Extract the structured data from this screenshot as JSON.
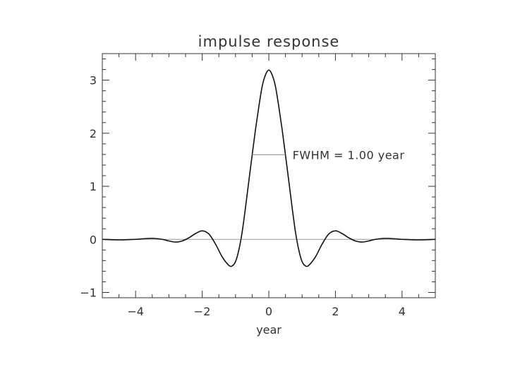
{
  "chart_data": {
    "type": "line",
    "title": "impulse response",
    "xlabel": "year",
    "ylabel": "",
    "xlim": [
      -5,
      5
    ],
    "ylim": [
      -1.1,
      3.5
    ],
    "xticks": [
      -4,
      -2,
      0,
      2,
      4
    ],
    "xtick_labels": [
      "−4",
      "−2",
      "0",
      "2",
      "4"
    ],
    "yticks": [
      -1,
      0,
      1,
      2,
      3
    ],
    "ytick_labels": [
      "−1",
      "0",
      "1",
      "2",
      "3"
    ],
    "grid": false,
    "series": [
      {
        "x": [
          -5.0,
          -4.5,
          -4.0,
          -3.8,
          -3.5,
          -3.2,
          -3.0,
          -2.8,
          -2.6,
          -2.4,
          -2.2,
          -2.0,
          -1.8,
          -1.6,
          -1.4,
          -1.2,
          -1.1,
          -1.0,
          -0.9,
          -0.8,
          -0.7,
          -0.6,
          -0.5,
          -0.4,
          -0.3,
          -0.2,
          -0.1,
          0.0,
          0.1,
          0.2,
          0.3,
          0.4,
          0.5,
          0.6,
          0.7,
          0.8,
          0.9,
          1.0,
          1.1,
          1.2,
          1.4,
          1.6,
          1.8,
          2.0,
          2.2,
          2.4,
          2.6,
          2.8,
          3.0,
          3.2,
          3.5,
          3.8,
          4.0,
          4.5,
          5.0
        ],
        "y": [
          0.0,
          -0.01,
          0.0,
          0.01,
          0.02,
          0.0,
          -0.03,
          -0.05,
          -0.03,
          0.03,
          0.11,
          0.16,
          0.1,
          -0.09,
          -0.33,
          -0.49,
          -0.5,
          -0.42,
          -0.2,
          0.14,
          0.6,
          1.1,
          1.59,
          2.07,
          2.5,
          2.88,
          3.1,
          3.19,
          3.1,
          2.88,
          2.5,
          2.07,
          1.59,
          1.1,
          0.6,
          0.14,
          -0.2,
          -0.42,
          -0.5,
          -0.49,
          -0.33,
          -0.09,
          0.1,
          0.16,
          0.11,
          0.03,
          -0.03,
          -0.05,
          -0.03,
          0.0,
          0.02,
          0.01,
          0.0,
          -0.01,
          0.0
        ]
      }
    ],
    "reference_lines": [
      {
        "type": "horizontal",
        "y": 0
      }
    ],
    "annotations": [
      {
        "text": "FWHM = 1.00 year",
        "x1": -0.5,
        "x2": 0.5,
        "y": 1.595
      }
    ]
  }
}
